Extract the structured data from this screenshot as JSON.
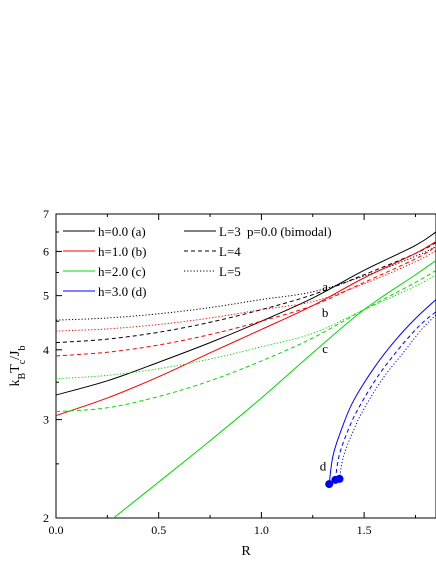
{
  "chart_data": {
    "type": "line",
    "title": "",
    "xlabel": "R",
    "ylabel": "kBTc/Jb",
    "ylabel_parts": {
      "k": "k",
      "k_sub": "B",
      "T": "T",
      "T_sub": "c",
      "slash": "/J",
      "J_sub": "b"
    },
    "xlim": [
      0.0,
      1.85
    ],
    "ylim": [
      2.0,
      7.0
    ],
    "yscale": "log",
    "grid": false,
    "legend_placement": "top-left",
    "x_ticks": [
      0.0,
      0.5,
      1.0,
      1.5
    ],
    "x_tick_labels": [
      "0.0",
      "0.5",
      "1.0",
      "1.5"
    ],
    "y_ticks": [
      2,
      3,
      4,
      5,
      6,
      7
    ],
    "y_tick_labels": [
      "2",
      "3",
      "4",
      "5",
      "6",
      "7"
    ],
    "legend_fields": [
      {
        "label": "h=0.0 (a)",
        "color": "#000000"
      },
      {
        "label": "h=1.0 (b)",
        "color": "#ff0000"
      },
      {
        "label": "h=2.0 (c)",
        "color": "#00dd00"
      },
      {
        "label": "h=3.0 (d)",
        "color": "#0000ff"
      }
    ],
    "legend_styles": [
      {
        "label": "L=3",
        "dash": "solid"
      },
      {
        "label": "L=4",
        "dash": "dashed"
      },
      {
        "label": "L=5",
        "dash": "dotted"
      }
    ],
    "annotation": "p=0.0 (bimodal)",
    "series": [
      {
        "field": "h=0.0 (a)",
        "L": "L=3",
        "color": "#000000",
        "dash": "solid",
        "x": [
          0.0,
          0.25,
          0.5,
          0.75,
          1.0,
          1.25,
          1.5,
          1.75,
          1.85
        ],
        "y": [
          3.32,
          3.52,
          3.8,
          4.12,
          4.5,
          4.95,
          5.55,
          6.15,
          6.5
        ]
      },
      {
        "field": "h=0.0 (a)",
        "L": "L=4",
        "color": "#000000",
        "dash": "dashed",
        "x": [
          0.0,
          0.25,
          0.5,
          0.75,
          1.0,
          1.25,
          1.5,
          1.75,
          1.85
        ],
        "y": [
          4.12,
          4.18,
          4.3,
          4.48,
          4.72,
          5.02,
          5.45,
          5.95,
          6.22
        ]
      },
      {
        "field": "h=0.0 (a)",
        "L": "L=5",
        "color": "#000000",
        "dash": "dotted",
        "x": [
          0.0,
          0.25,
          0.5,
          0.75,
          1.0,
          1.25,
          1.5,
          1.75,
          1.85
        ],
        "y": [
          4.52,
          4.56,
          4.64,
          4.76,
          4.92,
          5.08,
          5.42,
          5.88,
          6.12
        ]
      },
      {
        "field": "h=1.0 (b)",
        "L": "L=3",
        "color": "#ff0000",
        "dash": "solid",
        "x": [
          0.0,
          0.25,
          0.5,
          0.75,
          1.0,
          1.25,
          1.5,
          1.75,
          1.85
        ],
        "y": [
          3.05,
          3.28,
          3.58,
          3.95,
          4.35,
          4.8,
          5.38,
          5.95,
          6.25
        ]
      },
      {
        "field": "h=1.0 (b)",
        "L": "L=4",
        "color": "#ff0000",
        "dash": "dashed",
        "x": [
          0.0,
          0.25,
          0.5,
          0.75,
          1.0,
          1.25,
          1.5,
          1.75,
          1.85
        ],
        "y": [
          3.9,
          3.96,
          4.08,
          4.26,
          4.5,
          4.8,
          5.28,
          5.82,
          6.12
        ]
      },
      {
        "field": "h=1.0 (b)",
        "L": "L=5",
        "color": "#ff0000",
        "dash": "dotted",
        "x": [
          0.0,
          0.25,
          0.5,
          0.75,
          1.0,
          1.25,
          1.5,
          1.75,
          1.85
        ],
        "y": [
          4.32,
          4.36,
          4.44,
          4.56,
          4.72,
          4.88,
          5.25,
          5.75,
          6.02
        ]
      },
      {
        "field": "h=2.0 (c)",
        "L": "L=3",
        "color": "#00dd00",
        "dash": "solid",
        "x": [
          0.28,
          0.5,
          0.75,
          1.0,
          1.25,
          1.5,
          1.75,
          1.85
        ],
        "y": [
          2.0,
          2.32,
          2.75,
          3.28,
          3.95,
          4.72,
          5.45,
          5.78
        ]
      },
      {
        "field": "h=2.0 (c)",
        "L": "L=4",
        "color": "#00dd00",
        "dash": "dashed",
        "x": [
          0.0,
          0.25,
          0.5,
          0.75,
          1.0,
          1.25,
          1.5,
          1.75,
          1.85
        ],
        "y": [
          3.1,
          3.15,
          3.3,
          3.52,
          3.82,
          4.2,
          4.72,
          5.28,
          5.55
        ]
      },
      {
        "field": "h=2.0 (c)",
        "L": "L=5",
        "color": "#00dd00",
        "dash": "dotted",
        "x": [
          0.0,
          0.25,
          0.5,
          0.75,
          1.0,
          1.25,
          1.5,
          1.75,
          1.85
        ],
        "y": [
          3.55,
          3.6,
          3.7,
          3.85,
          4.05,
          4.28,
          4.72,
          5.2,
          5.45
        ]
      },
      {
        "field": "h=3.0 (d)",
        "L": "L=3",
        "color": "#0000ff",
        "dash": "solid",
        "x": [
          1.33,
          1.35,
          1.4,
          1.45,
          1.55,
          1.65,
          1.75,
          1.85
        ],
        "y": [
          2.3,
          2.6,
          2.95,
          3.25,
          3.72,
          4.15,
          4.55,
          4.92
        ]
      },
      {
        "field": "h=3.0 (d)",
        "L": "L=4",
        "color": "#0000ff",
        "dash": "dashed",
        "x": [
          1.36,
          1.38,
          1.43,
          1.48,
          1.57,
          1.67,
          1.77,
          1.85
        ],
        "y": [
          2.34,
          2.6,
          2.92,
          3.18,
          3.6,
          4.02,
          4.42,
          4.68
        ]
      },
      {
        "field": "h=3.0 (d)",
        "L": "L=5",
        "color": "#0000ff",
        "dash": "dotted",
        "x": [
          1.38,
          1.4,
          1.45,
          1.5,
          1.59,
          1.69,
          1.78,
          1.85
        ],
        "y": [
          2.35,
          2.58,
          2.88,
          3.14,
          3.55,
          3.95,
          4.35,
          4.62
        ]
      }
    ],
    "endpoints": [
      {
        "x": 1.33,
        "y": 2.3,
        "color": "#0000ff"
      },
      {
        "x": 1.36,
        "y": 2.34,
        "color": "#0000ff"
      },
      {
        "x": 1.38,
        "y": 2.35,
        "color": "#0000ff"
      }
    ],
    "point_labels": [
      {
        "text": "a",
        "x": 1.31,
        "y": 5.1
      },
      {
        "text": "b",
        "x": 1.31,
        "y": 4.58
      },
      {
        "text": "c",
        "x": 1.31,
        "y": 3.95
      },
      {
        "text": "d",
        "x": 1.3,
        "y": 2.43
      }
    ]
  }
}
